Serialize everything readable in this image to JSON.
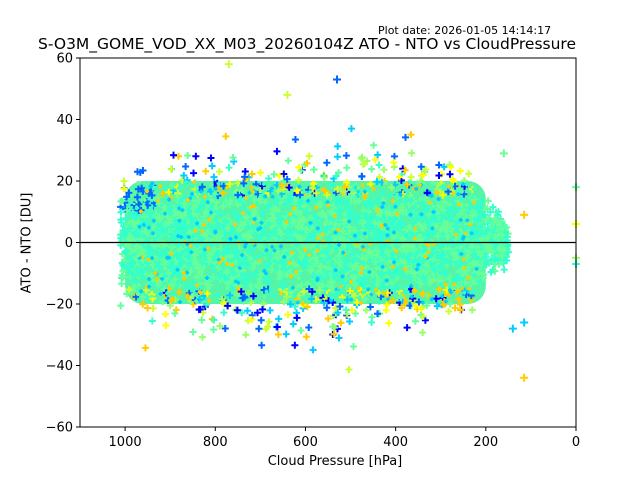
{
  "plot_date": "Plot date: 2026-01-05 14:14:17",
  "chart_data": {
    "type": "scatter",
    "title": "S-O3M_GOME_VOD_XX_M03_20260104Z ATO - NTO vs CloudPressure",
    "xlabel": "Cloud Pressure [hPa]",
    "ylabel": "ATO - NTO [DU]",
    "xlim": [
      1100,
      0
    ],
    "ylim": [
      -60,
      60
    ],
    "x_inverted": true,
    "xticks": [
      1000,
      800,
      600,
      400,
      200,
      0
    ],
    "xtick_labels": [
      "1000",
      "800",
      "600",
      "400",
      "200",
      "0"
    ],
    "yticks": [
      -60,
      -40,
      -20,
      0,
      20,
      40,
      60
    ],
    "ytick_labels": [
      "−60",
      "−40",
      "−20",
      "0",
      "20",
      "40",
      "60"
    ],
    "reference_line": {
      "y": 0,
      "color": "#000000"
    },
    "marker": "+",
    "grid": false,
    "legend": "none",
    "colormap": [
      "#0000ff",
      "#0066ff",
      "#00ccff",
      "#33ffcc",
      "#66ff99",
      "#99ff66",
      "#ccff33",
      "#ffff00",
      "#ffcc00"
    ],
    "dense_core_color": "#55f5a8",
    "point_cloud_summary": {
      "x_range": [
        1010,
        110
      ],
      "core": {
        "x_range": [
          1000,
          200
        ],
        "y_range": [
          -20,
          20
        ]
      },
      "upper_envelope_y": 60,
      "lower_envelope_y": -60,
      "outliers": [
        {
          "x": 0,
          "y": 18,
          "color": "#66ff99"
        },
        {
          "x": 0,
          "y": 6,
          "color": "#ffff00"
        },
        {
          "x": 0,
          "y": -5,
          "color": "#99ff66"
        },
        {
          "x": 0,
          "y": -7,
          "color": "#33ffcc"
        },
        {
          "x": 115,
          "y": 9,
          "color": "#ffcc00"
        },
        {
          "x": 115,
          "y": -26,
          "color": "#00ccff"
        },
        {
          "x": 115,
          "y": -44,
          "color": "#ffcc00"
        },
        {
          "x": 160,
          "y": 29,
          "color": "#66ff99"
        },
        {
          "x": 140,
          "y": -28,
          "color": "#00ccff"
        },
        {
          "x": 530,
          "y": 53,
          "color": "#0066ff"
        },
        {
          "x": 770,
          "y": 58,
          "color": "#ccff33"
        },
        {
          "x": 640,
          "y": 48,
          "color": "#ccff33"
        }
      ]
    }
  }
}
